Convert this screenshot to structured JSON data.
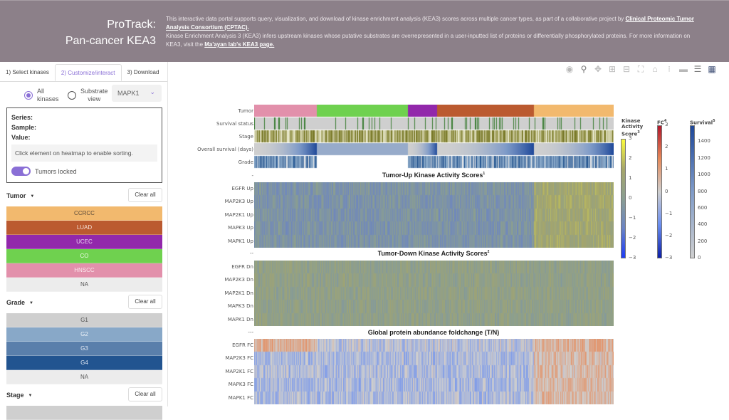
{
  "header": {
    "brand_line1": "ProTrack:",
    "brand_line2": "Pan-cancer KEA3",
    "intro_p1_text": "This interactive data portal supports query, visualization, and download of kinase enrichment analysis (KEA3) scores across multiple cancer types, as part of a collaborative project by ",
    "intro_p1_link": "Clinical Proteomic Tumor Analysis Consortium (CPTAC).",
    "intro_p2_text": "Kinase Enrichment Analysis 3 (KEA3) infers upstream kinases whose putative substrates are overrepresented in a user-inputted list of proteins or differentially phosphorylated proteins. For more information on KEA3, visit the ",
    "intro_p2_link": "Ma'ayan lab's KEA3 page."
  },
  "sidebar": {
    "tabs": [
      {
        "label": "1) Select kinases",
        "active": false
      },
      {
        "label": "2) Customize/interact",
        "active": true
      },
      {
        "label": "3) Download",
        "active": false
      }
    ],
    "view": {
      "all_kinases_line1": "All",
      "all_kinases_line2": "kinases",
      "substrate_line1": "Substrate",
      "substrate_line2": "view",
      "selected": "all",
      "kinase_select": "MAPK1"
    },
    "info": {
      "series_label": "Series:",
      "sample_label": "Sample:",
      "value_label": "Value:",
      "hint": "Click element on heatmap to enable sorting.",
      "toggle_label": "Tumors locked",
      "toggle_on": true
    },
    "clear_label": "Clear all",
    "filters": [
      {
        "title": "Tumor",
        "options": [
          {
            "label": "CCRCC",
            "color": "#f2b96e",
            "text": "#5a4a3a"
          },
          {
            "label": "LUAD",
            "color": "#bb5a30",
            "text": "#f5e0d5"
          },
          {
            "label": "UCEC",
            "color": "#9228ab",
            "text": "#ecd8f2"
          },
          {
            "label": "CO",
            "color": "#6fd14f",
            "text": "#f0fae9"
          },
          {
            "label": "HNSCC",
            "color": "#e290ab",
            "text": "#fbe9ef"
          },
          {
            "label": "NA",
            "color": "#ececec",
            "text": "#555555"
          }
        ]
      },
      {
        "title": "Grade",
        "options": [
          {
            "label": "G1",
            "color": "#cfcfcf",
            "text": "#555555"
          },
          {
            "label": "G2",
            "color": "#88a8c8",
            "text": "#eef3f8"
          },
          {
            "label": "G3",
            "color": "#5a7fab",
            "text": "#e3eaf3"
          },
          {
            "label": "G4",
            "color": "#225490",
            "text": "#dfe7f2"
          },
          {
            "label": "NA",
            "color": "#ececec",
            "text": "#555555"
          }
        ]
      },
      {
        "title": "Stage",
        "options": []
      }
    ]
  },
  "toolbar": {
    "icons": [
      "camera-icon",
      "zoom-icon",
      "pan-icon",
      "zoom-in-icon",
      "zoom-out-icon",
      "autoscale-icon",
      "home-icon",
      "spike-lines-icon",
      "hover-closest-icon",
      "hover-compare-icon",
      "plotly-logo-icon"
    ]
  },
  "chart_data": {
    "type": "heatmap",
    "annotation_rows": [
      "Tumor",
      "Survival status",
      "Stage",
      "Overall survival (days)",
      "Grade"
    ],
    "tumor_groups": [
      {
        "name": "HNSCC",
        "fraction": 0.174,
        "color": "#e290ab"
      },
      {
        "name": "CO",
        "fraction": 0.254,
        "color": "#6fd14f"
      },
      {
        "name": "UCEC",
        "fraction": 0.08,
        "color": "#9228ab"
      },
      {
        "name": "LUAD",
        "fraction": 0.27,
        "color": "#bb5a30"
      },
      {
        "name": "CCRCC",
        "fraction": 0.222,
        "color": "#f2b96e"
      }
    ],
    "separators": [
      "-",
      "--",
      "---"
    ],
    "panels": [
      {
        "title": "Tumor-Up Kinase Activity Scores",
        "footnote": "1",
        "colorscale": "kinase",
        "rows": [
          "EGFR Up",
          "MAP2K3 Up",
          "MAP2K1 Up",
          "MAPK3 Up",
          "MAPK1 Up"
        ]
      },
      {
        "title": "Tumor-Down Kinase Activity Scores",
        "footnote": "2",
        "colorscale": "kinase",
        "rows": [
          "EGFR Dn",
          "MAP2K3 Dn",
          "MAP2K1 Dn",
          "MAPK3 Dn",
          "MAPK1 Dn"
        ]
      },
      {
        "title": "Global protein abundance foldchange (T/N)",
        "footnote": "",
        "colorscale": "fc",
        "rows": [
          "EGFR FC",
          "MAP2K3 FC",
          "MAP2K1 FC",
          "MAPK3 FC",
          "MAPK1 FC"
        ]
      }
    ],
    "colorbars": [
      {
        "title_lines": [
          "Kinase",
          "Activity",
          "Score"
        ],
        "footnote": "3",
        "range": [
          -3,
          3
        ],
        "ticks": [
          "3",
          "2",
          "1",
          "0",
          "−1",
          "−2",
          "−3"
        ],
        "colors": [
          "#fbfb3c",
          "#a6a66a",
          "#8a9e92",
          "#6b84c4",
          "#1d3cf5"
        ]
      },
      {
        "title_lines": [
          "FC"
        ],
        "footnote": "4",
        "range": [
          -3,
          3
        ],
        "ticks": [
          "3",
          "2",
          "1",
          "0",
          "−1",
          "−2",
          "−3"
        ],
        "colors": [
          "#b2182b",
          "#e68a5a",
          "#cfcfcf",
          "#6a8ef0",
          "#0c1fa8"
        ]
      },
      {
        "title_lines": [
          "Survival"
        ],
        "footnote": "5",
        "range": [
          0,
          1600
        ],
        "ticks": [
          "1400",
          "1200",
          "1000",
          "800",
          "600",
          "400",
          "200",
          "0"
        ],
        "colors": [
          "#1d4799",
          "#7f9bc8",
          "#cfcfcf"
        ]
      }
    ]
  }
}
